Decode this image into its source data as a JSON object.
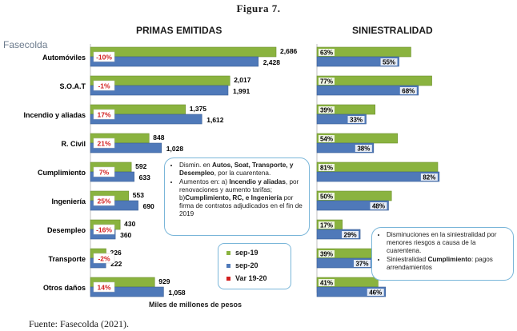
{
  "figure_title": "Figura 7.",
  "source_logo": "Fasecolda",
  "source_note": "Fuente: Fasecolda (2021).",
  "colors": {
    "sep19": "#8ab33f",
    "sep20": "#4f79b9",
    "var": "#d21f1f",
    "badge_bg": "#ffffff"
  },
  "chart_data": [
    {
      "type": "bar",
      "title": "PRIMAS EMITIDAS",
      "xlabel": "Miles de millones de pesos",
      "ylabel": "",
      "categories": [
        "Automóviles",
        "S.O.A.T",
        "Incendio y aliadas",
        "R. Civil",
        "Cumplimiento",
        "Ingeniería",
        "Desempleo",
        "Transporte",
        "Otros daños"
      ],
      "series": [
        {
          "name": "sep-19",
          "values": [
            2686,
            2017,
            1375,
            848,
            592,
            553,
            430,
            226,
            929
          ],
          "labels": [
            "2,686",
            "2,017",
            "1,375",
            "848",
            "592",
            "553",
            "430",
            "226",
            "929"
          ]
        },
        {
          "name": "sep-20",
          "values": [
            2428,
            1991,
            1612,
            1028,
            633,
            690,
            360,
            222,
            1058
          ],
          "labels": [
            "2,428",
            "1,991",
            "1,612",
            "1,028",
            "633",
            "690",
            "360",
            "222",
            "1,058"
          ]
        }
      ],
      "variation": {
        "name": "Var 19-20",
        "labels": [
          "-10%",
          "-1%",
          "17%",
          "21%",
          "7%",
          "25%",
          "-16%",
          "-2%",
          "14%"
        ]
      },
      "legend_position": "bottom"
    },
    {
      "type": "bar",
      "title": "SINIESTRALIDAD",
      "categories": [
        "Automóviles",
        "S.O.A.T",
        "Incendio y aliadas",
        "R. Civil",
        "Cumplimiento",
        "Ingeniería",
        "Desempleo",
        "Transporte",
        "Otros daños"
      ],
      "series": [
        {
          "name": "sep-19",
          "values": [
            63,
            77,
            39,
            54,
            81,
            50,
            17,
            39,
            41
          ],
          "labels": [
            "63%",
            "77%",
            "39%",
            "54%",
            "81%",
            "50%",
            "17%",
            "39%",
            "41%"
          ]
        },
        {
          "name": "sep-20",
          "values": [
            55,
            68,
            33,
            38,
            82,
            48,
            29,
            37,
            46
          ],
          "labels": [
            "55%",
            "68%",
            "33%",
            "38%",
            "82%",
            "48%",
            "29%",
            "37%",
            "46%"
          ]
        }
      ]
    }
  ],
  "note_primas": [
    {
      "parts": [
        {
          "t": "Dismin. en ",
          "b": false
        },
        {
          "t": "Autos, Soat, Transporte, y Desempleo",
          "b": true
        },
        {
          "t": ", por la cuarentena.",
          "b": false
        }
      ]
    },
    {
      "parts": [
        {
          "t": "Aumentos en: a) ",
          "b": false
        },
        {
          "t": "Incendio y aliadas",
          "b": true
        },
        {
          "t": ", por renovaciones y aumento tarifas; b)",
          "b": false
        },
        {
          "t": "Cumplimiento, RC, e Ingeniería",
          "b": true
        },
        {
          "t": " por firma de contratos adjudicados en el fin de 2019",
          "b": false
        }
      ]
    }
  ],
  "note_siniestralidad": [
    {
      "parts": [
        {
          "t": "Disminuciones en la siniestralidad por menores riesgos a causa de la cuarentena.",
          "b": false
        }
      ]
    },
    {
      "parts": [
        {
          "t": "Siniestralidad ",
          "b": false
        },
        {
          "t": "Cumplimiento",
          "b": true
        },
        {
          "t": ": pagos arrendamientos",
          "b": false
        }
      ]
    }
  ]
}
